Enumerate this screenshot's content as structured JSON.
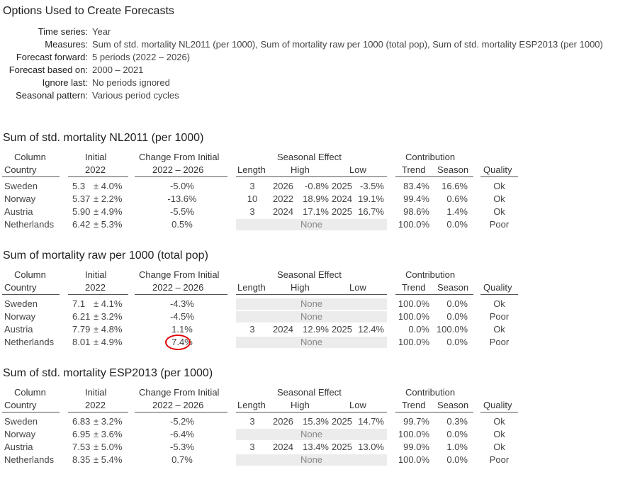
{
  "title": "Options Used to Create Forecasts",
  "options": [
    {
      "key": "Time series:",
      "value": "Year"
    },
    {
      "key": "Measures:",
      "value": "Sum of std. mortality NL2011 (per 1000), Sum of mortality raw per 1000 (total pop), Sum of std. mortality ESP2013 (per 1000)"
    },
    {
      "key": "Forecast forward:",
      "value": "5 periods (2022 – 2026)"
    },
    {
      "key": "Forecast based on:",
      "value": "2000 – 2021"
    },
    {
      "key": "Ignore last:",
      "value": "No periods ignored"
    },
    {
      "key": "Seasonal pattern:",
      "value": "Various period cycles"
    }
  ],
  "headers": {
    "column": "Column",
    "country": "Country",
    "initial": "Initial",
    "initial_year": "2022",
    "change": "Change From Initial",
    "change_range": "2022 – 2026",
    "seasonal": "Seasonal Effect",
    "length": "Length",
    "high": "High",
    "low": "Low",
    "contribution": "Contribution",
    "trend": "Trend",
    "season": "Season",
    "quality": "Quality"
  },
  "tables": [
    {
      "title": "Sum of std. mortality NL2011 (per 1000)",
      "rows": [
        {
          "country": "Sweden",
          "initial": "5.3",
          "pm": "± 4.0%",
          "change": "-5.0%",
          "length": "3",
          "high_year": "2026",
          "high_val": "-0.8%",
          "low_year": "2025",
          "low_val": "-3.5%",
          "trend": "83.4%",
          "season": "16.6%",
          "quality": "Ok"
        },
        {
          "country": "Norway",
          "initial": "5.37",
          "pm": "± 2.2%",
          "change": "-13.6%",
          "length": "10",
          "high_year": "2022",
          "high_val": "18.9%",
          "low_year": "2024",
          "low_val": "19.1%",
          "trend": "99.4%",
          "season": "0.6%",
          "quality": "Ok"
        },
        {
          "country": "Austria",
          "initial": "5.90",
          "pm": "± 4.9%",
          "change": "-5.5%",
          "length": "3",
          "high_year": "2024",
          "high_val": "17.1%",
          "low_year": "2025",
          "low_val": "16.7%",
          "trend": "98.6%",
          "season": "1.4%",
          "quality": "Ok"
        },
        {
          "country": "Netherlands",
          "initial": "6.42",
          "pm": "± 5.3%",
          "change": "0.5%",
          "none": "None",
          "trend": "100.0%",
          "season": "0.0%",
          "quality": "Poor"
        }
      ]
    },
    {
      "title": "Sum of mortality raw per 1000 (total pop)",
      "rows": [
        {
          "country": "Sweden",
          "initial": "7.1",
          "pm": "± 4.1%",
          "change": "-4.3%",
          "none": "None",
          "trend": "100.0%",
          "season": "0.0%",
          "quality": "Ok"
        },
        {
          "country": "Norway",
          "initial": "6.21",
          "pm": "± 3.2%",
          "change": "-4.5%",
          "none": "None",
          "trend": "100.0%",
          "season": "0.0%",
          "quality": "Poor"
        },
        {
          "country": "Austria",
          "initial": "7.79",
          "pm": "± 4.8%",
          "change": "1.1%",
          "length": "3",
          "high_year": "2024",
          "high_val": "12.9%",
          "low_year": "2025",
          "low_val": "12.4%",
          "trend": "0.0%",
          "season": "100.0%",
          "quality": "Ok"
        },
        {
          "country": "Netherlands",
          "initial": "8.01",
          "pm": "± 4.9%",
          "change": "7.4%",
          "none": "None",
          "trend": "100.0%",
          "season": "0.0%",
          "quality": "Poor",
          "circled": true
        }
      ]
    },
    {
      "title": "Sum of std. mortality ESP2013 (per 1000)",
      "rows": [
        {
          "country": "Sweden",
          "initial": "6.83",
          "pm": "± 3.2%",
          "change": "-5.2%",
          "length": "3",
          "high_year": "2026",
          "high_val": "15.3%",
          "low_year": "2025",
          "low_val": "14.7%",
          "trend": "99.7%",
          "season": "0.3%",
          "quality": "Ok"
        },
        {
          "country": "Norway",
          "initial": "6.95",
          "pm": "± 3.6%",
          "change": "-6.4%",
          "none": "None",
          "trend": "100.0%",
          "season": "0.0%",
          "quality": "Ok"
        },
        {
          "country": "Austria",
          "initial": "7.53",
          "pm": "± 5.0%",
          "change": "-5.3%",
          "length": "3",
          "high_year": "2024",
          "high_val": "13.4%",
          "low_year": "2025",
          "low_val": "13.0%",
          "trend": "99.0%",
          "season": "1.0%",
          "quality": "Ok"
        },
        {
          "country": "Netherlands",
          "initial": "8.35",
          "pm": "± 5.4%",
          "change": "0.7%",
          "none": "None",
          "trend": "100.0%",
          "season": "0.0%",
          "quality": "Poor"
        }
      ]
    }
  ]
}
